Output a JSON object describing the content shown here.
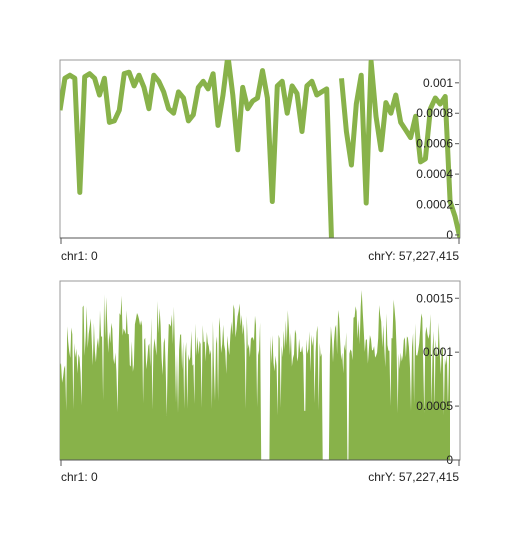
{
  "chart_data": [
    {
      "type": "line",
      "x_range_labels": [
        "chr1: 0",
        "chrY: 57,227,415"
      ],
      "y_ticks": [
        0,
        0.0002,
        0.0004,
        0.0006,
        0.0008,
        0.001
      ],
      "y_tick_labels": [
        "0",
        "0.0002",
        "0.0004",
        "0.0006",
        "0.0008",
        "0.001"
      ],
      "ylim": [
        -2e-05,
        0.00115
      ],
      "grid": false,
      "color": "#88b24a",
      "values": [
        0.00082,
        0.00103,
        0.00105,
        0.00103,
        0.00028,
        0.00104,
        0.00106,
        0.00103,
        0.00092,
        0.00103,
        0.00074,
        0.00075,
        0.00082,
        0.00106,
        0.00107,
        0.00098,
        0.00105,
        0.00097,
        0.00083,
        0.00105,
        0.00101,
        0.00094,
        0.00083,
        0.0008,
        0.00094,
        0.0009,
        0.00075,
        0.00079,
        0.00097,
        0.00101,
        0.00096,
        0.00106,
        0.00072,
        0.00092,
        0.00118,
        0.00092,
        0.00056,
        0.00097,
        0.00083,
        0.00088,
        0.0009,
        0.00108,
        0.0009,
        0.00022,
        0.00098,
        0.00101,
        0.0008,
        0.00098,
        0.00093,
        0.00068,
        0.00098,
        0.00101,
        0.00092,
        0.00094,
        0.00096,
        -5e-05,
        null,
        0.00103,
        0.00068,
        0.00046,
        0.00086,
        0.00105,
        0.00021,
        0.00114,
        0.00078,
        0.00056,
        0.00087,
        0.0008,
        0.00092,
        0.00074,
        0.00069,
        0.00064,
        0.00078,
        0.00048,
        0.0005,
        0.00083,
        0.0009,
        0.00086,
        0.00091,
        0.00022,
        0.00012,
        -2e-05
      ]
    },
    {
      "type": "area",
      "x_range_labels": [
        "chr1: 0",
        "chrY: 57,227,415"
      ],
      "y_ticks": [
        0,
        0.0005,
        0.001,
        0.0015
      ],
      "y_tick_labels": [
        "0",
        "0.0005",
        "0.001",
        "0.0015"
      ],
      "ylim": [
        0,
        0.00166
      ],
      "grid": false,
      "color": "#88b24a",
      "gaps": [
        [
          0.515,
          0.537
        ],
        [
          0.673,
          0.69
        ],
        [
          0.735,
          0.742
        ]
      ],
      "peaks": [
        0.00108,
        0.0013,
        0.00134,
        0.00118,
        0.00145,
        0.0015,
        0.00128,
        0.00152,
        0.00158,
        0.0014,
        0.00126,
        0.00155,
        0.00148,
        0.00122,
        0.00138,
        0.0015,
        0.0012,
        0.00134,
        0.00148,
        0.00118,
        0.00142,
        0.00152,
        0.00124,
        0.00136,
        0.0013,
        0.00148,
        0.00138,
        0.00122,
        0.00135,
        0.00156,
        0.0013,
        0.0012,
        0.00146,
        0.0015,
        0.00135,
        0.00124,
        0.0014,
        0.00128,
        0.0016,
        0.00132,
        0.00118,
        0.00138,
        0.00144,
        0.00126,
        0.0014,
        0.0013,
        0.00124,
        0.0015,
        0.00132,
        0.00122,
        0.00138,
        0.00128,
        0.00142,
        0.0012,
        0.00136,
        0.00155,
        0.0016,
        0.00134,
        0.00124,
        0.00148,
        0.00132,
        0.00142,
        0.0015,
        0.00124,
        0.00136,
        0.0013,
        0.00148,
        0.00138,
        0.00124,
        0.0014,
        0.0013,
        0.00118,
        0.00132
      ]
    }
  ]
}
